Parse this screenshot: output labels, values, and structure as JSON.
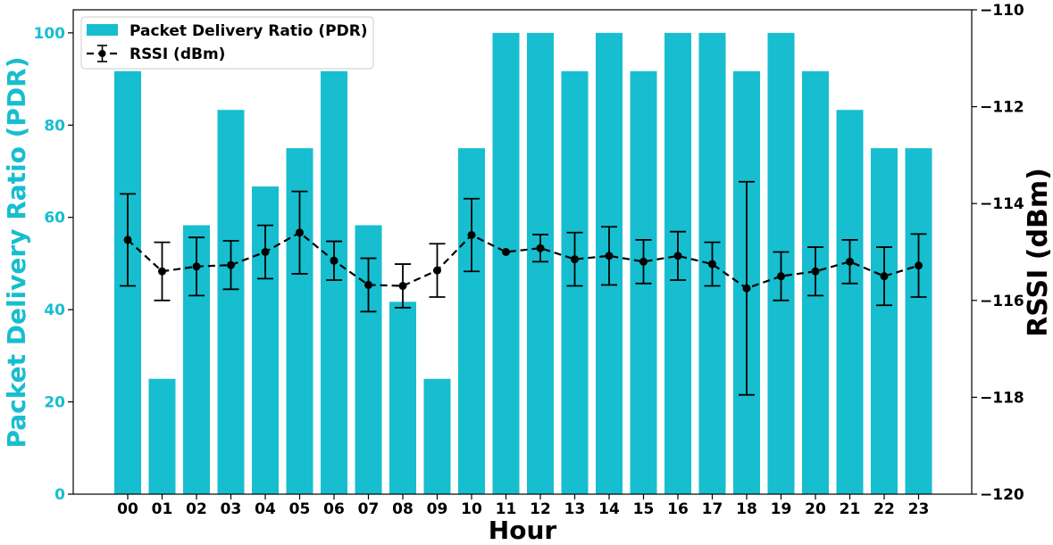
{
  "chart_data": {
    "type": "bar",
    "title": "",
    "xlabel": "Hour",
    "ylabel_left": "Packet Delivery Ratio (PDR)",
    "ylabel_right": "RSSI (dBm)",
    "categories": [
      "00",
      "01",
      "02",
      "03",
      "04",
      "05",
      "06",
      "07",
      "08",
      "09",
      "10",
      "11",
      "12",
      "13",
      "14",
      "15",
      "16",
      "17",
      "18",
      "19",
      "20",
      "21",
      "22",
      "23"
    ],
    "ylim_left": [
      0,
      105
    ],
    "yticks_left": [
      0,
      20,
      40,
      60,
      80,
      100
    ],
    "ylim_right": [
      -120,
      -110
    ],
    "yticks_right": [
      -120,
      -118,
      -116,
      -114,
      -112,
      -110
    ],
    "yticks_right_labels": [
      "−120",
      "−118",
      "−116",
      "−114",
      "−112",
      "−110"
    ],
    "legend_position": "top-left",
    "grid": false,
    "colors": {
      "bar": "#17becf",
      "line": "#000000",
      "left_axis_text": "#17becf"
    },
    "series": [
      {
        "name": "Packet Delivery Ratio (PDR)",
        "axis": "left",
        "kind": "bar",
        "values": [
          91.7,
          25.0,
          58.3,
          83.3,
          66.7,
          75.0,
          91.7,
          58.3,
          41.7,
          25.0,
          75.0,
          100,
          100,
          91.7,
          100,
          91.7,
          100,
          100,
          91.7,
          100,
          91.7,
          83.3,
          75.0,
          75.0
        ]
      },
      {
        "name": "RSSI (dBm)",
        "axis": "right",
        "kind": "line-errorbar",
        "values": [
          -114.75,
          -115.4,
          -115.3,
          -115.27,
          -115.0,
          -114.6,
          -115.18,
          -115.68,
          -115.7,
          -115.38,
          -114.65,
          -115.0,
          -114.92,
          -115.15,
          -115.08,
          -115.2,
          -115.08,
          -115.25,
          -115.75,
          -115.5,
          -115.4,
          -115.2,
          -115.5,
          -115.28
        ],
        "errors": [
          0.95,
          0.6,
          0.6,
          0.5,
          0.55,
          0.85,
          0.4,
          0.55,
          0.45,
          0.55,
          0.75,
          0,
          0.28,
          0.55,
          0.6,
          0.45,
          0.5,
          0.45,
          2.2,
          0.5,
          0.5,
          0.45,
          0.6,
          0.65
        ]
      }
    ]
  }
}
